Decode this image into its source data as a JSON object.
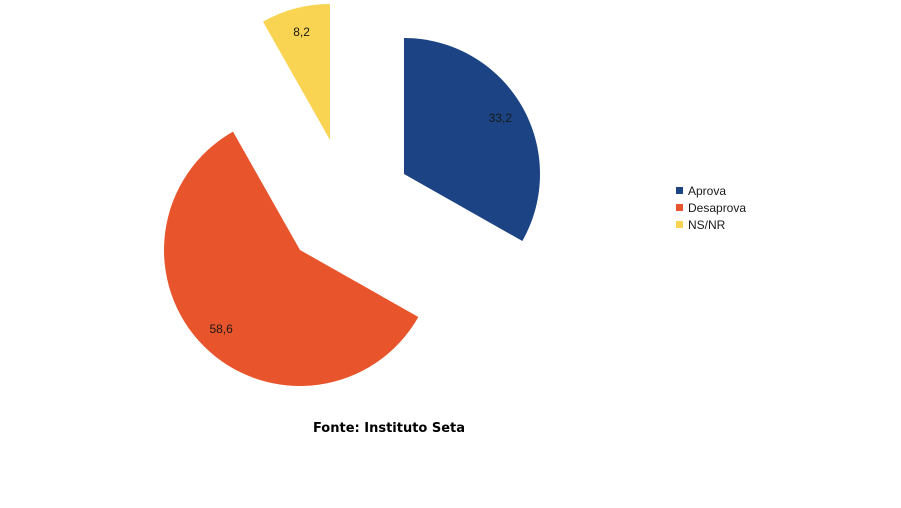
{
  "chart_data": {
    "type": "pie",
    "categories": [
      "Aprova",
      "Desaprova",
      "NS/NR"
    ],
    "values": [
      33.2,
      58.6,
      8.2
    ],
    "value_labels": [
      "33,2",
      "58,6",
      "8,2"
    ],
    "colors": [
      "#1c4484",
      "#e8542c",
      "#f8d452"
    ],
    "exploded": true,
    "legend_placement": "right"
  },
  "source": "Fonte: Instituto Seta"
}
